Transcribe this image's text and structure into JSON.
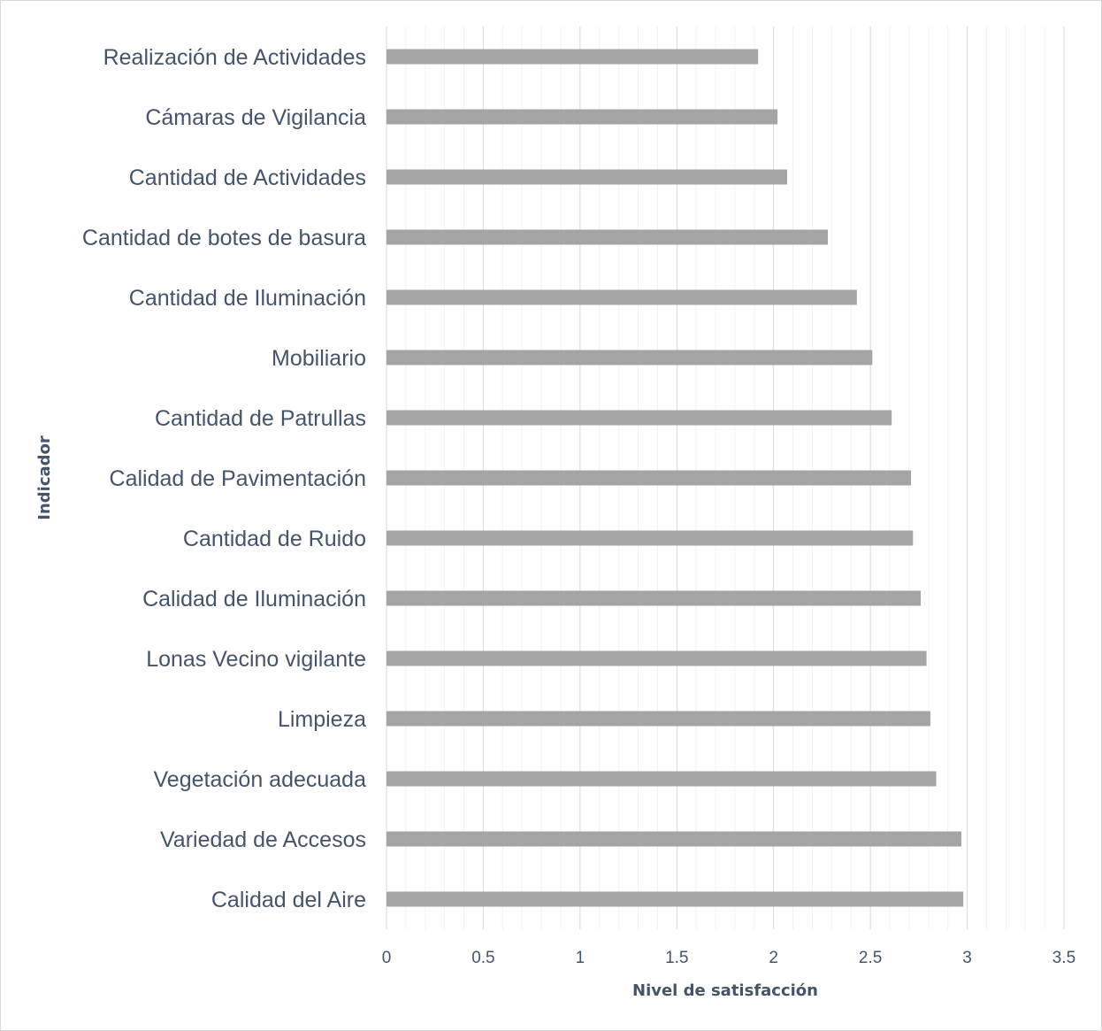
{
  "chart_data": {
    "type": "bar",
    "orientation": "horizontal",
    "xlabel": "Nivel de satisfacción",
    "ylabel": "Indicador",
    "xlim": [
      0,
      3.5
    ],
    "x_ticks": [
      "0",
      "0.5",
      "1",
      "1.5",
      "2",
      "2.5",
      "3",
      "3.5"
    ],
    "grid": true,
    "legend": "none",
    "bar_color": "#a5a5a5",
    "categories": [
      "Realización de Actividades",
      "Cámaras de Vigilancia",
      "Cantidad de Actividades",
      "Cantidad de botes de basura",
      "Cantidad de Iluminación",
      "Mobiliario",
      "Cantidad de Patrullas",
      "Calidad de Pavimentación",
      "Cantidad de Ruido",
      "Calidad de Iluminación",
      "Lonas Vecino vigilante",
      "Limpieza",
      "Vegetación adecuada",
      "Variedad de Accesos",
      "Calidad del Aire"
    ],
    "values": [
      1.92,
      2.02,
      2.07,
      2.28,
      2.43,
      2.51,
      2.61,
      2.71,
      2.72,
      2.76,
      2.79,
      2.81,
      2.84,
      2.97,
      2.98
    ]
  }
}
